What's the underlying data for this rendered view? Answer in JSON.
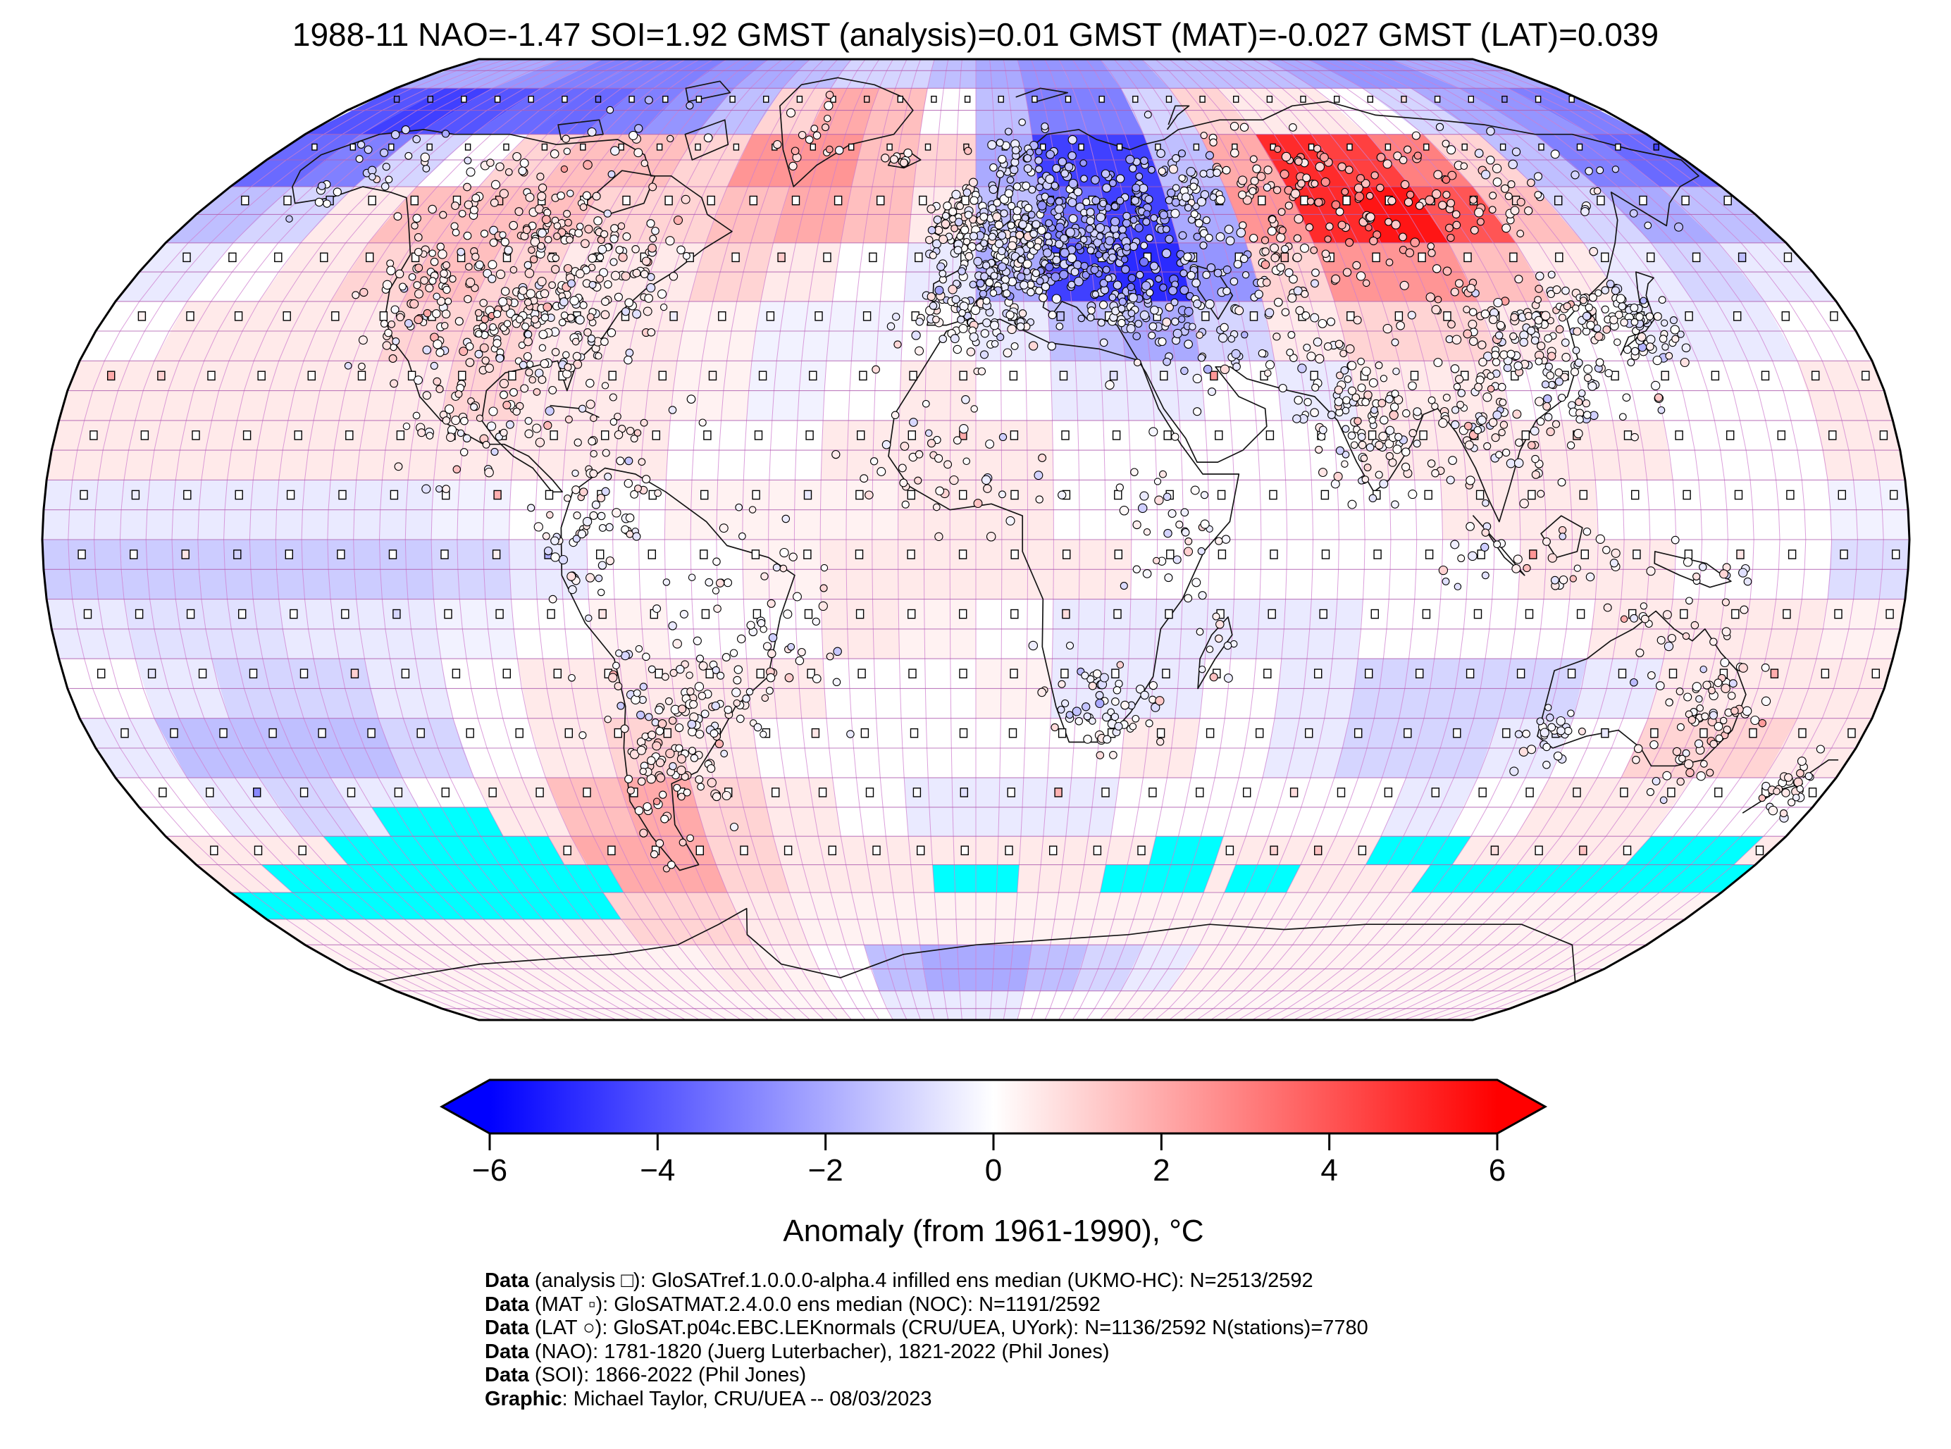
{
  "figure": {
    "title": "1988-11 NAO=-1.47 SOI=1.92 GMST (analysis)=0.01 GMST (MAT)=-0.027 GMST (LAT)=0.039"
  },
  "colorbar": {
    "label": "Anomaly (from 1961-1990), °C",
    "tick_labels": [
      "−6",
      "−4",
      "−2",
      "0",
      "2",
      "4",
      "6"
    ],
    "tick_values": [
      -6,
      -4,
      -2,
      0,
      2,
      4,
      6
    ],
    "min": -6,
    "max": 6,
    "color_min": "#0000ff",
    "color_mid": "#ffffff",
    "color_max": "#ff0000"
  },
  "caption": {
    "lines": [
      {
        "prefix": "Data",
        "text": " (analysis □): GloSATref.1.0.0.0-alpha.4 infilled ens median (UKMO-HC): N=2513/2592"
      },
      {
        "prefix": "Data",
        "text": " (MAT ▫): GloSATMAT.2.4.0.0 ens median (NOC): N=1191/2592"
      },
      {
        "prefix": "Data",
        "text": " (LAT ○): GloSAT.p04c.EBC.LEKnormals (CRU/UEA, UYork): N=1136/2592 N(stations)=7780"
      },
      {
        "prefix": "Data",
        "text": " (NAO): 1781-1820 (Juerg Luterbacher), 1821-2022 (Phil Jones)"
      },
      {
        "prefix": "Data",
        "text": " (SOI): 1866-2022 (Phil Jones)"
      },
      {
        "prefix": "Graphic",
        "text": ": Michael Taylor, CRU/UEA -- 08/03/2023"
      }
    ]
  },
  "chart_data": {
    "type": "heatmap",
    "title": "1988-11 NAO=-1.47 SOI=1.92 GMST (analysis)=0.01 GMST (MAT)=-0.027 GMST (LAT)=0.039",
    "date": "1988-11",
    "indices": {
      "NAO": -1.47,
      "SOI": 1.92,
      "GMST_analysis": 0.01,
      "GMST_MAT": -0.027,
      "GMST_LAT": 0.039
    },
    "projection": "robinson",
    "graticule_step_deg": 5,
    "colorbar_label": "Anomaly (from 1961-1990), °C",
    "colorbar_ticks": [
      -6,
      -4,
      -2,
      0,
      2,
      4,
      6
    ],
    "value_range_degC": [
      -6,
      6
    ],
    "grid": {
      "lon_step_deg": 15,
      "lat_step_deg": 10,
      "lon_centers": [
        -172.5,
        -157.5,
        -142.5,
        -127.5,
        -112.5,
        -97.5,
        -82.5,
        -67.5,
        -52.5,
        -37.5,
        -22.5,
        -7.5,
        7.5,
        22.5,
        37.5,
        52.5,
        67.5,
        82.5,
        97.5,
        112.5,
        127.5,
        142.5,
        157.5,
        172.5
      ],
      "lat_centers": [
        85,
        75,
        65,
        55,
        45,
        35,
        25,
        15,
        5,
        -5,
        -15,
        -25,
        -35,
        -45,
        -55,
        -65,
        -75,
        -85
      ]
    },
    "anomaly_degC": [
      [
        -2,
        -2,
        -2.5,
        -3,
        -3,
        -3,
        -2.5,
        -2,
        -1.5,
        -1,
        -1,
        -1.5,
        -2,
        -2.5,
        -2.5,
        -2,
        -1.5,
        -1.5,
        -1.5,
        -2,
        -2.5,
        -2.5,
        -2,
        -2
      ],
      [
        -4,
        -4.5,
        -4,
        -3.5,
        -3.5,
        -3,
        -2.5,
        -1.5,
        1,
        2,
        1.5,
        0,
        -1.5,
        -3,
        -3,
        -1,
        1,
        0.5,
        0.5,
        0,
        -1,
        -2,
        -2.5,
        -3
      ],
      [
        -3.5,
        -3,
        -1,
        0,
        1,
        1.5,
        1.5,
        1,
        2.5,
        2.5,
        1.5,
        1,
        -2,
        -4.5,
        -4.5,
        -1.5,
        2,
        5,
        4.5,
        3,
        1,
        -1.5,
        -3,
        -3.5
      ],
      [
        -1.5,
        -1,
        0.5,
        1.5,
        1.5,
        1.5,
        1,
        1,
        1.5,
        2,
        1.5,
        0.5,
        -1.5,
        -3.5,
        -4.5,
        -2,
        2.5,
        5,
        5.5,
        4,
        1.5,
        -1,
        -2,
        -1.5
      ],
      [
        -0.5,
        0,
        0.5,
        1,
        1.5,
        1,
        0.5,
        0.5,
        1,
        0.5,
        0,
        -0.5,
        -2,
        -4.5,
        -5,
        -2.5,
        1,
        2.5,
        2.5,
        1.5,
        0.5,
        -0.5,
        -1,
        -0.5
      ],
      [
        0,
        0.5,
        0.5,
        0.5,
        1,
        1,
        0.5,
        0.5,
        0.3,
        -0.3,
        -0.3,
        0,
        -0.5,
        -1.5,
        -2,
        -1,
        0.5,
        1,
        1,
        0.5,
        0,
        -0.5,
        -0.5,
        0
      ],
      [
        0.5,
        0.5,
        0.5,
        0.5,
        0.5,
        1,
        0.5,
        0.5,
        0.3,
        -0.3,
        0,
        0.5,
        0,
        -0.5,
        -0.5,
        0,
        -0.5,
        0.5,
        0.5,
        0,
        0,
        0,
        0,
        0.5
      ],
      [
        0.5,
        0.5,
        0.5,
        0.5,
        0.5,
        0.5,
        0.5,
        0.5,
        0,
        0,
        0.5,
        0.5,
        0.5,
        0,
        0,
        0,
        0,
        0.5,
        0.5,
        0.5,
        0.5,
        0,
        0,
        0.5
      ],
      [
        -0.5,
        -0.5,
        -0.5,
        -0.5,
        -0.5,
        -0.3,
        0,
        0,
        0.3,
        0.3,
        0.3,
        0.5,
        0.5,
        0,
        0,
        0,
        0,
        0,
        0.5,
        0.5,
        0,
        0,
        0,
        -0.3
      ],
      [
        -1.2,
        -1.2,
        -1.2,
        -1.2,
        -1.2,
        -1,
        -0.5,
        0,
        0,
        0.3,
        0.5,
        0.5,
        0.5,
        0.5,
        0,
        0,
        0,
        0,
        0,
        0.5,
        0.5,
        0,
        0,
        -0.8
      ],
      [
        -0.5,
        -0.7,
        -0.7,
        -0.5,
        -0.5,
        -0.3,
        0,
        0.3,
        0,
        0,
        0.5,
        0.3,
        0,
        -0.5,
        -0.5,
        -0.5,
        -0.5,
        0,
        0,
        0,
        0.5,
        0.5,
        0.5,
        0.3
      ],
      [
        0,
        -0.5,
        -1,
        -1,
        -0.5,
        0,
        0.5,
        0.5,
        0.5,
        0.5,
        0,
        0,
        0.3,
        -0.5,
        -0.5,
        0,
        -0.5,
        -1,
        -1,
        -1,
        -0.5,
        0.5,
        0.5,
        0.5
      ],
      [
        -0.5,
        -1.5,
        -1.5,
        -1.5,
        -1,
        0,
        0.5,
        1,
        0.5,
        0,
        0,
        0,
        0,
        0,
        0.5,
        0,
        -0.5,
        -1,
        -1,
        -0.5,
        0,
        1,
        1,
        0.5
      ],
      [
        0,
        -0.5,
        -1,
        -0.5,
        0,
        0.5,
        1.5,
        2,
        1,
        0.5,
        0,
        -0.5,
        -0.5,
        -0.5,
        0,
        0,
        0,
        0,
        -0.5,
        0,
        0.5,
        0.5,
        0,
        0
      ],
      [
        0.5,
        0.5,
        0.5,
        0.5,
        0.5,
        1,
        2,
        2,
        1,
        0.5,
        0.5,
        0.5,
        0.5,
        0.5,
        0.5,
        0.5,
        0.5,
        0.5,
        0.5,
        0.5,
        0.5,
        0.5,
        0.5,
        0.5
      ],
      [
        0.3,
        0.3,
        0.3,
        0.3,
        0.3,
        0.5,
        1,
        1,
        0.5,
        0.3,
        0.3,
        0.3,
        0.3,
        0.3,
        0.3,
        0.3,
        0.3,
        0.3,
        0.3,
        0.3,
        0.3,
        0.3,
        0.3,
        0.3
      ],
      [
        0.3,
        0.3,
        0.3,
        0.3,
        0.3,
        0.3,
        0.3,
        0.5,
        0.3,
        0,
        -1.5,
        -2,
        -2,
        -1.5,
        -1,
        -0.5,
        0.3,
        0.3,
        0.3,
        0.3,
        0.3,
        0.3,
        0.3,
        0.3
      ],
      [
        0.2,
        0.2,
        0.2,
        0.2,
        0.2,
        0.2,
        0.2,
        0.2,
        0.2,
        0,
        -0.5,
        -0.5,
        -0.5,
        0,
        0,
        0.2,
        0.2,
        0.2,
        0.2,
        0.2,
        0.2,
        0.2,
        0.2,
        0.2
      ]
    ],
    "cyan_cells": {
      "color": "#00ffff",
      "boxes_lon_lat": [
        [
          -130,
          -105,
          -50,
          -45
        ],
        [
          -145,
          -95,
          -55,
          -50
        ],
        [
          -165,
          -85,
          -60,
          -55
        ],
        [
          -180,
          -90,
          -65,
          -60
        ],
        [
          -10,
          10,
          -60,
          -55
        ],
        [
          40,
          55,
          -55,
          -50
        ],
        [
          30,
          55,
          -60,
          -55
        ],
        [
          60,
          75,
          -60,
          -55
        ],
        [
          90,
          110,
          -55,
          -50
        ],
        [
          105,
          180,
          -60,
          -55
        ],
        [
          150,
          175,
          -55,
          -50
        ]
      ]
    },
    "markers": {
      "analysis": {
        "glyph": "□",
        "shape": "open square"
      },
      "mat": {
        "glyph": "▫",
        "shape": "small open square"
      },
      "lat_stations": {
        "glyph": "○",
        "shape": "open circle"
      }
    }
  }
}
